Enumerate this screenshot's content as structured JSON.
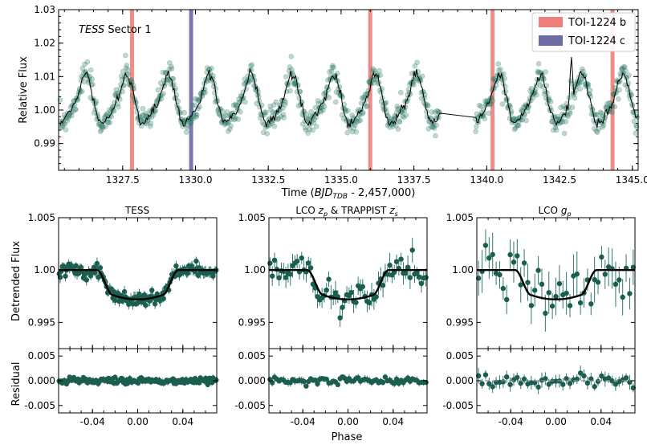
{
  "top": {
    "annotation": "TESS Sector 1",
    "annotation_italic": "TESS",
    "annotation_rest": " Sector 1",
    "xlabel_prefix": "Time (",
    "xlabel_bjd": "BJD",
    "xlabel_sub": "TDB",
    "xlabel_suffix": " - 2,457,000)",
    "ylabel": "Relative Flux",
    "legend": [
      {
        "label": "TOI-1224 b",
        "color": "#ee7f7a"
      },
      {
        "label": "TOI-1224 c",
        "color": "#6e6ba3"
      }
    ]
  },
  "bottom": {
    "ylabel_top": "Detrended Flux",
    "ylabel_bottom": "Residual",
    "xlabel": "Phase",
    "panel_titles": {
      "tess": "TESS",
      "lco_main": "LCO ",
      "lco_zp": "z",
      "lco_zp_sub": "p",
      "trappist": " & TRAPPIST ",
      "trappist_z": "z",
      "trappist_sub": "s",
      "lco2_main": "LCO ",
      "lco2_g": "g",
      "lco2_sub": "p"
    }
  },
  "colors": {
    "points": "#2f7a68",
    "points_dark": "#1b5e50",
    "model": "#000000",
    "b": "#ee7f7a",
    "c": "#6e6ba3"
  },
  "chart_data": [
    {
      "id": "lightcurve",
      "type": "scatter",
      "xlim": [
        1325.3,
        1345.2
      ],
      "ylim": [
        0.982,
        1.03
      ],
      "xticks": [
        1327.5,
        1330.0,
        1332.5,
        1335.0,
        1337.5,
        1340.0,
        1342.5,
        1345.0
      ],
      "xtick_labels": [
        "1327.5",
        "1330.0",
        "1332.5",
        "1335.0",
        "1337.5",
        "1340.0",
        "1342.5",
        "1345.0"
      ],
      "yticks": [
        0.99,
        1.0,
        1.01,
        1.02,
        1.03
      ],
      "ytick_labels": [
        "0.99",
        "1.00",
        "1.01",
        "1.02",
        "1.03"
      ],
      "variability": {
        "period_days": 1.42,
        "amplitude": 0.0085,
        "mean": 1.0025,
        "phase_peak_day": 1326.18
      },
      "gap": [
        1338.4,
        1339.6
      ],
      "flare": {
        "x": 1342.9,
        "y": 1.019
      },
      "transits_b": [
        1327.82,
        1336.0,
        1340.2,
        1344.32
      ],
      "transits_c": [
        1329.85
      ]
    },
    {
      "id": "tess_phase",
      "type": "scatter",
      "title": "TESS",
      "xlim": [
        -0.07,
        0.07
      ],
      "ylim": [
        0.9925,
        1.005
      ],
      "res_ylim": [
        -0.0065,
        0.0065
      ],
      "xticks": [
        -0.04,
        0.0,
        0.04
      ],
      "xtick_labels": [
        "-0.04",
        "0.00",
        "0.04"
      ],
      "yticks": [
        0.995,
        1.0,
        1.005
      ],
      "ytick_labels": [
        "0.995",
        "1.00",
        "1.005"
      ],
      "res_yticks": [
        -0.005,
        0.0,
        0.005
      ],
      "res_ytick_labels": [
        "-0.005",
        "0.000",
        "0.005"
      ],
      "transit": {
        "t1": -0.036,
        "t2": -0.022,
        "depth": 0.0028
      },
      "n_points": 150,
      "scatter": 0.00035,
      "res_scatter": 0.0006
    },
    {
      "id": "lco_trappist_phase",
      "type": "scatter",
      "xlim": [
        -0.07,
        0.07
      ],
      "ylim": [
        0.9925,
        1.005
      ],
      "res_ylim": [
        -0.0065,
        0.0065
      ],
      "xticks": [
        -0.04,
        0.0,
        0.04
      ],
      "xtick_labels": [
        "-0.04",
        "0.00",
        "0.04"
      ],
      "yticks": [
        0.995,
        1.0,
        1.005
      ],
      "ytick_labels": [
        "0.995",
        "1.00",
        "1.005"
      ],
      "res_yticks": [
        -0.005,
        0.0,
        0.005
      ],
      "res_ytick_labels": [
        "-0.005",
        "0.000",
        "0.005"
      ],
      "transit": {
        "t1": -0.036,
        "t2": -0.022,
        "depth": 0.0028
      },
      "n_points": 70,
      "scatter": 0.0007,
      "res_scatter": 0.0007
    },
    {
      "id": "lco_gp_phase",
      "type": "scatter",
      "xlim": [
        -0.07,
        0.07
      ],
      "ylim": [
        0.9925,
        1.005
      ],
      "res_ylim": [
        -0.0065,
        0.0065
      ],
      "xticks": [
        -0.04,
        0.0,
        0.04
      ],
      "xtick_labels": [
        "-0.04",
        "0.00",
        "0.04"
      ],
      "yticks": [
        0.995,
        1.0,
        1.005
      ],
      "ytick_labels": [
        "0.995",
        "1.00",
        "1.005"
      ],
      "res_yticks": [
        -0.005,
        0.0,
        0.005
      ],
      "res_ytick_labels": [
        "-0.005",
        "0.000",
        "0.005"
      ],
      "transit": {
        "t1": -0.036,
        "t2": -0.022,
        "depth": 0.0028
      },
      "n_points": 45,
      "scatter": 0.0013,
      "res_scatter": 0.0013
    }
  ]
}
